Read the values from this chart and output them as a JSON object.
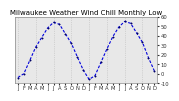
{
  "title": "Milwaukee Weather Wind Chill Monthly Low",
  "months_labels": [
    "J",
    "F",
    "M",
    "A",
    "M",
    "J",
    "J",
    "A",
    "S",
    "O",
    "N",
    "D",
    "J",
    "F",
    "M",
    "A",
    "M",
    "J",
    "J",
    "A",
    "S",
    "O",
    "N",
    "D"
  ],
  "values": [
    -4,
    0,
    14,
    28,
    38,
    48,
    54,
    52,
    42,
    32,
    18,
    4,
    -6,
    -2,
    12,
    26,
    39,
    49,
    55,
    53,
    43,
    33,
    17,
    3
  ],
  "line_color": "#0000dd",
  "marker_color": "#000066",
  "bg_color": "#ffffff",
  "plot_bg": "#e8e8e8",
  "grid_color": "#bbbbbb",
  "ylim": [
    -10,
    60
  ],
  "yticks": [
    -10,
    0,
    10,
    20,
    30,
    40,
    50,
    60
  ],
  "ytick_labels": [
    "-10",
    "0",
    "10",
    "20",
    "30",
    "40",
    "50",
    "60"
  ],
  "grid_x_positions": [
    0,
    3,
    6,
    9,
    12,
    15,
    18,
    21
  ],
  "title_fontsize": 5.0,
  "tick_fontsize": 3.8,
  "linewidth": 0.8,
  "markersize": 2.0
}
